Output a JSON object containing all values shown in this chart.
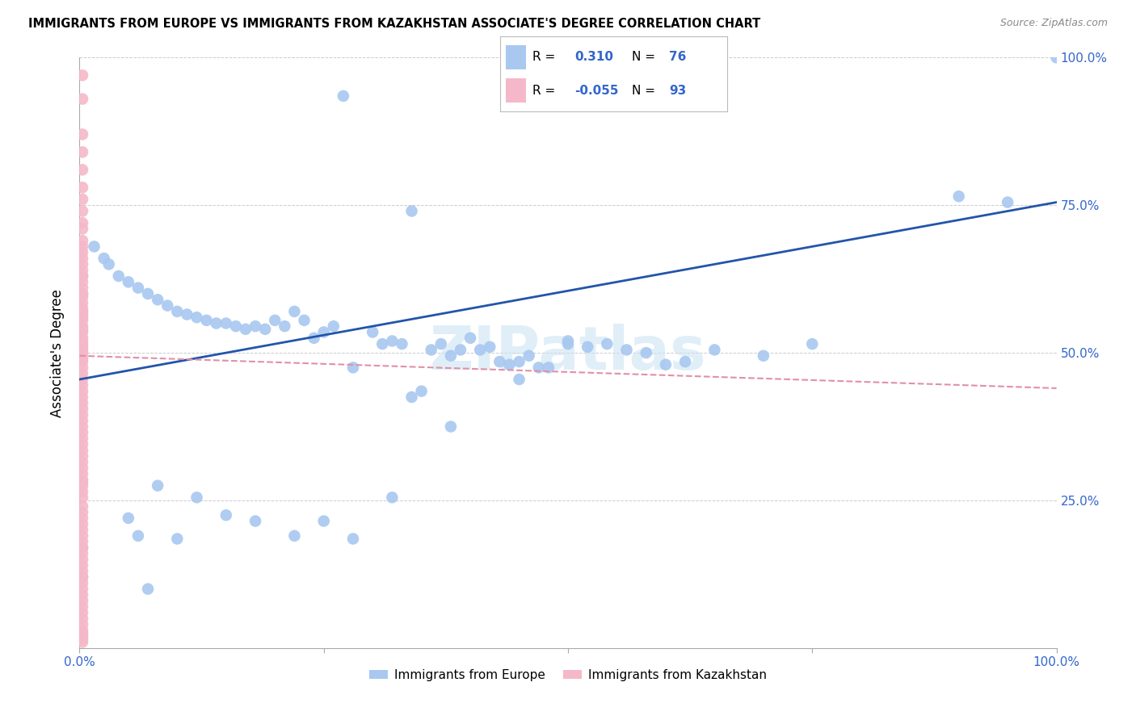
{
  "title": "IMMIGRANTS FROM EUROPE VS IMMIGRANTS FROM KAZAKHSTAN ASSOCIATE'S DEGREE CORRELATION CHART",
  "source": "Source: ZipAtlas.com",
  "ylabel": "Associate's Degree",
  "xlim": [
    0.0,
    1.0
  ],
  "ylim": [
    0.0,
    1.0
  ],
  "legend_R_blue": "0.310",
  "legend_N_blue": "76",
  "legend_R_pink": "-0.055",
  "legend_N_pink": "93",
  "blue_color": "#a8c8f0",
  "pink_color": "#f5b8c8",
  "line_blue_color": "#2255aa",
  "line_pink_color": "#e090a8",
  "watermark": "ZIPatlas",
  "blue_x": [
    0.27,
    0.34,
    0.015,
    0.025,
    0.03,
    0.04,
    0.05,
    0.06,
    0.07,
    0.08,
    0.09,
    0.1,
    0.11,
    0.12,
    0.13,
    0.14,
    0.15,
    0.16,
    0.17,
    0.18,
    0.19,
    0.2,
    0.21,
    0.22,
    0.23,
    0.24,
    0.25,
    0.26,
    0.28,
    0.3,
    0.31,
    0.32,
    0.33,
    0.34,
    0.35,
    0.36,
    0.37,
    0.38,
    0.39,
    0.4,
    0.41,
    0.42,
    0.43,
    0.44,
    0.45,
    0.46,
    0.47,
    0.48,
    0.5,
    0.52,
    0.54,
    0.56,
    0.58,
    0.6,
    0.62,
    0.65,
    0.7,
    0.75,
    0.9,
    0.95,
    1.0,
    0.07,
    0.06,
    0.08,
    0.05,
    0.1,
    0.12,
    0.15,
    0.18,
    0.22,
    0.25,
    0.28,
    0.32,
    0.38,
    0.45,
    0.5
  ],
  "blue_y": [
    0.935,
    0.74,
    0.68,
    0.66,
    0.65,
    0.63,
    0.62,
    0.61,
    0.6,
    0.59,
    0.58,
    0.57,
    0.565,
    0.56,
    0.555,
    0.55,
    0.55,
    0.545,
    0.54,
    0.545,
    0.54,
    0.555,
    0.545,
    0.57,
    0.555,
    0.525,
    0.535,
    0.545,
    0.475,
    0.535,
    0.515,
    0.52,
    0.515,
    0.425,
    0.435,
    0.505,
    0.515,
    0.495,
    0.505,
    0.525,
    0.505,
    0.51,
    0.485,
    0.48,
    0.485,
    0.495,
    0.475,
    0.475,
    0.52,
    0.51,
    0.515,
    0.505,
    0.5,
    0.48,
    0.485,
    0.505,
    0.495,
    0.515,
    0.765,
    0.755,
    1.0,
    0.1,
    0.19,
    0.275,
    0.22,
    0.185,
    0.255,
    0.225,
    0.215,
    0.19,
    0.215,
    0.185,
    0.255,
    0.375,
    0.455,
    0.515
  ],
  "pink_x": [
    0.003,
    0.003,
    0.003,
    0.003,
    0.003,
    0.003,
    0.003,
    0.003,
    0.003,
    0.003,
    0.003,
    0.003,
    0.003,
    0.003,
    0.003,
    0.003,
    0.003,
    0.003,
    0.003,
    0.003,
    0.003,
    0.003,
    0.003,
    0.003,
    0.003,
    0.003,
    0.003,
    0.003,
    0.003,
    0.003,
    0.003,
    0.003,
    0.003,
    0.003,
    0.003,
    0.003,
    0.003,
    0.003,
    0.003,
    0.003,
    0.003,
    0.003,
    0.003,
    0.003,
    0.003,
    0.003,
    0.003,
    0.003,
    0.003,
    0.003,
    0.003,
    0.003,
    0.003,
    0.003,
    0.003,
    0.003,
    0.003,
    0.003,
    0.003,
    0.003,
    0.003,
    0.003,
    0.003,
    0.003,
    0.003,
    0.003,
    0.003,
    0.003,
    0.003,
    0.003,
    0.003,
    0.003,
    0.003,
    0.003,
    0.003,
    0.003,
    0.003,
    0.003,
    0.003,
    0.003,
    0.003,
    0.003,
    0.003,
    0.003,
    0.003,
    0.003,
    0.003,
    0.003,
    0.003,
    0.003,
    0.003,
    0.003,
    0.003
  ],
  "pink_y": [
    0.97,
    0.93,
    0.87,
    0.84,
    0.81,
    0.78,
    0.76,
    0.74,
    0.72,
    0.71,
    0.69,
    0.68,
    0.67,
    0.66,
    0.65,
    0.64,
    0.63,
    0.62,
    0.61,
    0.6,
    0.595,
    0.585,
    0.575,
    0.565,
    0.56,
    0.555,
    0.545,
    0.535,
    0.525,
    0.52,
    0.515,
    0.505,
    0.5,
    0.495,
    0.49,
    0.485,
    0.475,
    0.465,
    0.455,
    0.445,
    0.435,
    0.425,
    0.415,
    0.405,
    0.395,
    0.385,
    0.375,
    0.365,
    0.355,
    0.345,
    0.335,
    0.325,
    0.315,
    0.305,
    0.295,
    0.285,
    0.275,
    0.265,
    0.255,
    0.24,
    0.23,
    0.22,
    0.21,
    0.2,
    0.19,
    0.18,
    0.17,
    0.16,
    0.15,
    0.14,
    0.13,
    0.12,
    0.11,
    0.1,
    0.09,
    0.08,
    0.07,
    0.06,
    0.05,
    0.04,
    0.03,
    0.025,
    0.02,
    0.015,
    0.01,
    0.63,
    0.6,
    0.57,
    0.54,
    0.51,
    0.28,
    0.17,
    0.12
  ]
}
